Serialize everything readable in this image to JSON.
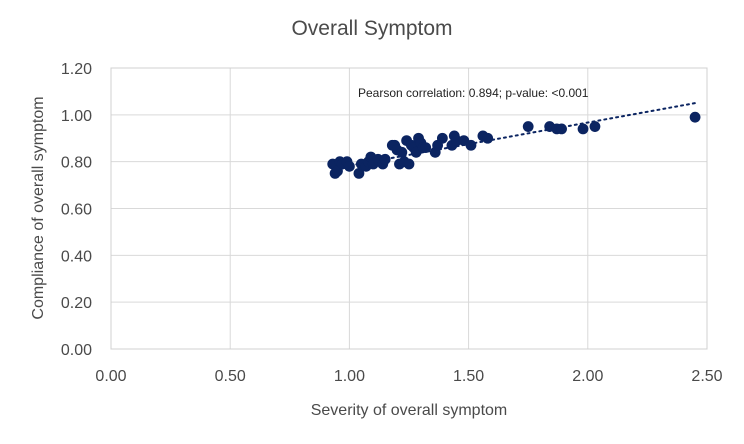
{
  "chart_data": {
    "type": "scatter",
    "title": "Overall Symptom",
    "xlabel": "Severity of overall symptom",
    "ylabel": "Compliance of overall symptom",
    "xlim": [
      0,
      2.5
    ],
    "ylim": [
      0,
      1.2
    ],
    "x_ticks": [
      "0.00",
      "0.50",
      "1.00",
      "1.50",
      "2.00",
      "2.50"
    ],
    "y_ticks": [
      "0.00",
      "0.20",
      "0.40",
      "0.60",
      "0.80",
      "1.00",
      "1.20"
    ],
    "grid": true,
    "annotation": "Pearson correlation: 0.894; p-value: <0.001",
    "marker_color": "#0b2461",
    "trendline": {
      "style": "dotted",
      "color": "#0b2461",
      "x": [
        0.93,
        2.45
      ],
      "y": [
        0.77,
        1.05
      ]
    },
    "series": [
      {
        "points": [
          [
            0.93,
            0.79
          ],
          [
            0.94,
            0.75
          ],
          [
            0.95,
            0.76
          ],
          [
            0.96,
            0.8
          ],
          [
            0.97,
            0.79
          ],
          [
            0.99,
            0.8
          ],
          [
            1.0,
            0.78
          ],
          [
            1.04,
            0.75
          ],
          [
            1.05,
            0.79
          ],
          [
            1.07,
            0.78
          ],
          [
            1.08,
            0.8
          ],
          [
            1.09,
            0.82
          ],
          [
            1.1,
            0.79
          ],
          [
            1.12,
            0.81
          ],
          [
            1.14,
            0.79
          ],
          [
            1.15,
            0.81
          ],
          [
            1.18,
            0.87
          ],
          [
            1.19,
            0.87
          ],
          [
            1.2,
            0.85
          ],
          [
            1.21,
            0.79
          ],
          [
            1.22,
            0.84
          ],
          [
            1.23,
            0.8
          ],
          [
            1.24,
            0.89
          ],
          [
            1.25,
            0.79
          ],
          [
            1.26,
            0.87
          ],
          [
            1.27,
            0.86
          ],
          [
            1.28,
            0.84
          ],
          [
            1.29,
            0.9
          ],
          [
            1.3,
            0.88
          ],
          [
            1.31,
            0.86
          ],
          [
            1.32,
            0.86
          ],
          [
            1.36,
            0.84
          ],
          [
            1.37,
            0.87
          ],
          [
            1.39,
            0.9
          ],
          [
            1.43,
            0.87
          ],
          [
            1.44,
            0.91
          ],
          [
            1.45,
            0.89
          ],
          [
            1.48,
            0.89
          ],
          [
            1.51,
            0.87
          ],
          [
            1.56,
            0.91
          ],
          [
            1.58,
            0.9
          ],
          [
            1.75,
            0.95
          ],
          [
            1.84,
            0.95
          ],
          [
            1.87,
            0.94
          ],
          [
            1.89,
            0.94
          ],
          [
            1.98,
            0.94
          ],
          [
            2.03,
            0.95
          ],
          [
            2.45,
            0.99
          ]
        ]
      }
    ]
  }
}
